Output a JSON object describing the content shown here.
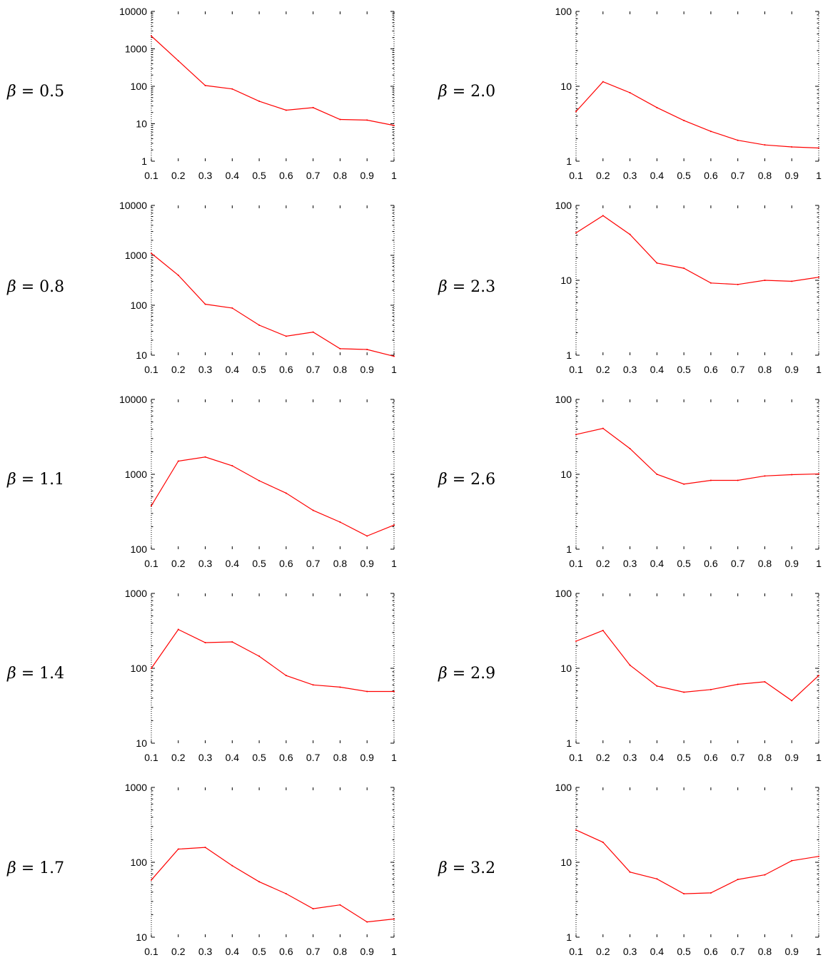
{
  "page": {
    "layout": "5 rows x 2 columns of small line plots",
    "background": "#ffffff",
    "line_color": "#ff0000"
  },
  "chart_data": [
    {
      "type": "line",
      "label": "β = 0.5",
      "beta_symbol": "β",
      "beta_text": "= 0.5",
      "y_scale": "log",
      "ylim": [
        1,
        10000
      ],
      "xlim": [
        0.1,
        1
      ],
      "x": [
        0.1,
        0.2,
        0.3,
        0.4,
        0.5,
        0.6,
        0.7,
        0.8,
        0.9,
        1.0
      ],
      "x_ticks": [
        "0.1",
        "0.2",
        "0.3",
        "0.4",
        "0.5",
        "0.6",
        "0.7",
        "0.8",
        "0.9",
        "1"
      ],
      "y_ticks": [
        "1",
        "10",
        "100",
        "1000",
        "10000"
      ],
      "y": [
        2200,
        480,
        105,
        85,
        40,
        23,
        27,
        13,
        12.5,
        9
      ],
      "color": "#ff0000"
    },
    {
      "type": "line",
      "label": "β = 2.0",
      "beta_symbol": "β",
      "beta_text": "= 2.0",
      "y_scale": "log",
      "ylim": [
        1,
        100
      ],
      "xlim": [
        0.1,
        1
      ],
      "x": [
        0.1,
        0.2,
        0.3,
        0.4,
        0.5,
        0.6,
        0.7,
        0.8,
        0.9,
        1.0
      ],
      "x_ticks": [
        "0.1",
        "0.2",
        "0.3",
        "0.4",
        "0.5",
        "0.6",
        "0.7",
        "0.8",
        "0.9",
        "1"
      ],
      "y_ticks": [
        "1",
        "10",
        "100"
      ],
      "y": [
        4.6,
        11.5,
        8.2,
        5.2,
        3.5,
        2.5,
        1.9,
        1.65,
        1.55,
        1.5
      ],
      "color": "#ff0000"
    },
    {
      "type": "line",
      "label": "β = 0.8",
      "beta_symbol": "β",
      "beta_text": "= 0.8",
      "y_scale": "log",
      "ylim": [
        10,
        10000
      ],
      "xlim": [
        0.1,
        1
      ],
      "x": [
        0.1,
        0.2,
        0.3,
        0.4,
        0.5,
        0.6,
        0.7,
        0.8,
        0.9,
        1.0
      ],
      "x_ticks": [
        "0.1",
        "0.2",
        "0.3",
        "0.4",
        "0.5",
        "0.6",
        "0.7",
        "0.8",
        "0.9",
        "1"
      ],
      "y_ticks": [
        "10",
        "100",
        "1000",
        "10000"
      ],
      "y": [
        1100,
        400,
        105,
        88,
        40,
        24,
        29,
        13.5,
        13,
        9.5
      ],
      "color": "#ff0000"
    },
    {
      "type": "line",
      "label": "β = 2.3",
      "beta_symbol": "β",
      "beta_text": "= 2.3",
      "y_scale": "log",
      "ylim": [
        1,
        100
      ],
      "xlim": [
        0.1,
        1
      ],
      "x": [
        0.1,
        0.2,
        0.3,
        0.4,
        0.5,
        0.6,
        0.7,
        0.8,
        0.9,
        1.0
      ],
      "x_ticks": [
        "0.1",
        "0.2",
        "0.3",
        "0.4",
        "0.5",
        "0.6",
        "0.7",
        "0.8",
        "0.9",
        "1"
      ],
      "y_ticks": [
        "1",
        "10",
        "100"
      ],
      "y": [
        43,
        73,
        41,
        17,
        14.5,
        9.2,
        8.8,
        10,
        9.7,
        11
      ],
      "color": "#ff0000"
    },
    {
      "type": "line",
      "label": "β = 1.1",
      "beta_symbol": "β",
      "beta_text": "= 1.1",
      "y_scale": "log",
      "ylim": [
        100,
        10000
      ],
      "xlim": [
        0.1,
        1
      ],
      "x": [
        0.1,
        0.2,
        0.3,
        0.4,
        0.5,
        0.6,
        0.7,
        0.8,
        0.9,
        1.0
      ],
      "x_ticks": [
        "0.1",
        "0.2",
        "0.3",
        "0.4",
        "0.5",
        "0.6",
        "0.7",
        "0.8",
        "0.9",
        "1"
      ],
      "y_ticks": [
        "100",
        "1000",
        "10000"
      ],
      "y": [
        380,
        1500,
        1700,
        1300,
        820,
        560,
        330,
        230,
        150,
        210
      ],
      "color": "#ff0000"
    },
    {
      "type": "line",
      "label": "β = 2.6",
      "beta_symbol": "β",
      "beta_text": "= 2.6",
      "y_scale": "log",
      "ylim": [
        1,
        100
      ],
      "xlim": [
        0.1,
        1
      ],
      "x": [
        0.1,
        0.2,
        0.3,
        0.4,
        0.5,
        0.6,
        0.7,
        0.8,
        0.9,
        1.0
      ],
      "x_ticks": [
        "0.1",
        "0.2",
        "0.3",
        "0.4",
        "0.5",
        "0.6",
        "0.7",
        "0.8",
        "0.9",
        "1"
      ],
      "y_ticks": [
        "1",
        "10",
        "100"
      ],
      "y": [
        34,
        41,
        22,
        10,
        7.4,
        8.3,
        8.3,
        9.5,
        9.9,
        10.1
      ],
      "color": "#ff0000"
    },
    {
      "type": "line",
      "label": "β = 1.4",
      "beta_symbol": "β",
      "beta_text": "= 1.4",
      "y_scale": "log",
      "ylim": [
        10,
        1000
      ],
      "xlim": [
        0.1,
        1
      ],
      "x": [
        0.1,
        0.2,
        0.3,
        0.4,
        0.5,
        0.6,
        0.7,
        0.8,
        0.9,
        1.0
      ],
      "x_ticks": [
        "0.1",
        "0.2",
        "0.3",
        "0.4",
        "0.5",
        "0.6",
        "0.7",
        "0.8",
        "0.9",
        "1"
      ],
      "y_ticks": [
        "10",
        "100",
        "1000"
      ],
      "y": [
        100,
        330,
        220,
        225,
        145,
        80,
        60,
        56,
        49,
        49
      ],
      "color": "#ff0000"
    },
    {
      "type": "line",
      "label": "β = 2.9",
      "beta_symbol": "β",
      "beta_text": "= 2.9",
      "y_scale": "log",
      "ylim": [
        1,
        100
      ],
      "xlim": [
        0.1,
        1
      ],
      "x": [
        0.1,
        0.2,
        0.3,
        0.4,
        0.5,
        0.6,
        0.7,
        0.8,
        0.9,
        1.0
      ],
      "x_ticks": [
        "0.1",
        "0.2",
        "0.3",
        "0.4",
        "0.5",
        "0.6",
        "0.7",
        "0.8",
        "0.9",
        "1"
      ],
      "y_ticks": [
        "1",
        "10",
        "100"
      ],
      "y": [
        23,
        32,
        11,
        5.8,
        4.8,
        5.2,
        6.1,
        6.6,
        3.7,
        8
      ],
      "color": "#ff0000"
    },
    {
      "type": "line",
      "label": "β = 1.7",
      "beta_symbol": "β",
      "beta_text": "= 1.7",
      "y_scale": "log",
      "ylim": [
        10,
        1000
      ],
      "xlim": [
        0.1,
        1
      ],
      "x": [
        0.1,
        0.2,
        0.3,
        0.4,
        0.5,
        0.6,
        0.7,
        0.8,
        0.9,
        1.0
      ],
      "x_ticks": [
        "0.1",
        "0.2",
        "0.3",
        "0.4",
        "0.5",
        "0.6",
        "0.7",
        "0.8",
        "0.9",
        "1"
      ],
      "y_ticks": [
        "10",
        "100",
        "1000"
      ],
      "y": [
        58,
        150,
        158,
        90,
        55,
        38,
        24,
        27,
        16,
        17.5
      ],
      "color": "#ff0000"
    },
    {
      "type": "line",
      "label": "β = 3.2",
      "beta_symbol": "β",
      "beta_text": "= 3.2",
      "y_scale": "log",
      "ylim": [
        1,
        100
      ],
      "xlim": [
        0.1,
        1
      ],
      "x": [
        0.1,
        0.2,
        0.3,
        0.4,
        0.5,
        0.6,
        0.7,
        0.8,
        0.9,
        1.0
      ],
      "x_ticks": [
        "0.1",
        "0.2",
        "0.3",
        "0.4",
        "0.5",
        "0.6",
        "0.7",
        "0.8",
        "0.9",
        "1"
      ],
      "y_ticks": [
        "1",
        "10",
        "100"
      ],
      "y": [
        27,
        18.5,
        7.4,
        6,
        3.8,
        3.9,
        5.9,
        6.8,
        10.5,
        12
      ],
      "color": "#ff0000"
    }
  ]
}
